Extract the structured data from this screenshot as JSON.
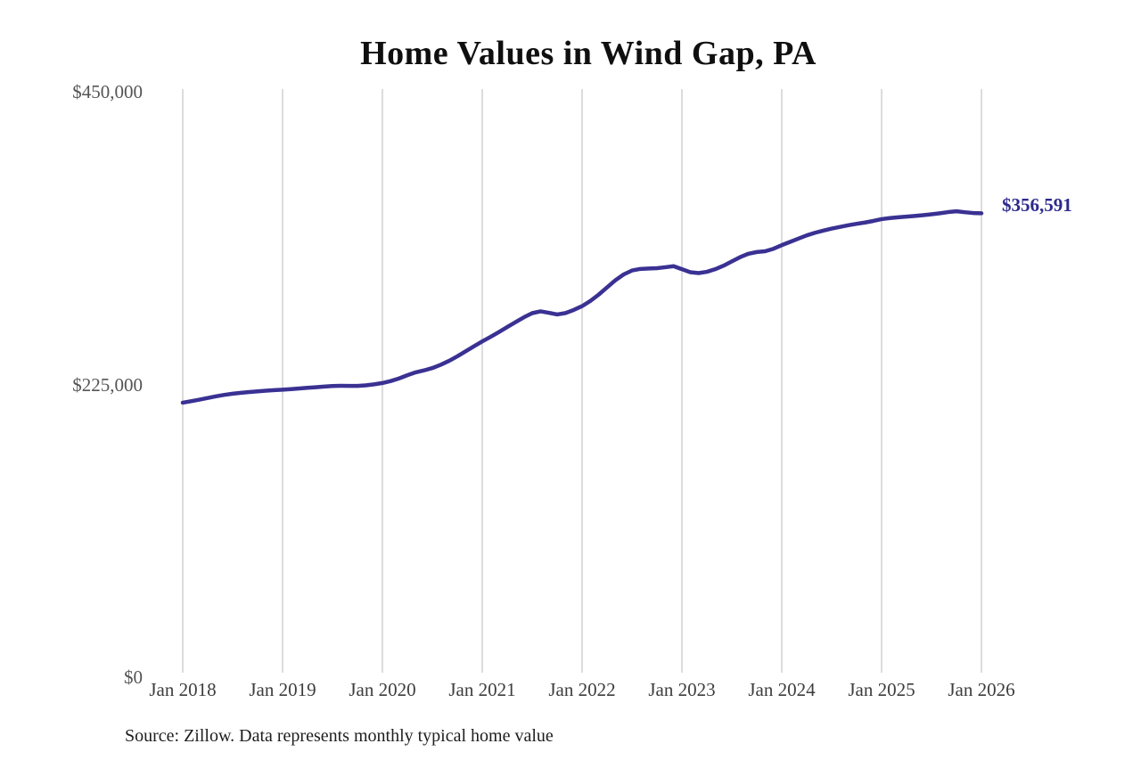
{
  "title": "Home Values in Wind Gap, PA",
  "source_note": "Source: Zillow. Data represents monthly typical home value",
  "end_label": "$356,591",
  "colors": {
    "line": "#3a3193",
    "end_label": "#2d2a8c",
    "grid": "#c9c9c9",
    "y_axis_text": "#555555",
    "x_axis_text": "#3d3d3d",
    "title_text": "#0f0f0f",
    "source_text": "#1e1e1e",
    "background": "#ffffff"
  },
  "chart_data": {
    "type": "line",
    "title": "Home Values in Wind Gap, PA",
    "xlabel": "",
    "ylabel": "",
    "ylim": [
      0,
      450000
    ],
    "y_tick_labels": [
      "$450,000",
      "$225,000",
      "$0"
    ],
    "y_tick_values": [
      450000,
      225000,
      0
    ],
    "x_tick_labels": [
      "Jan 2018",
      "Jan 2019",
      "Jan 2020",
      "Jan 2021",
      "Jan 2022",
      "Jan 2023",
      "Jan 2024",
      "Jan 2025",
      "Jan 2026"
    ],
    "grid": "vertical-only",
    "legend": "none",
    "final_value": 356591,
    "series": [
      {
        "name": "Monthly typical home value",
        "start_month": "Jan 2018",
        "end_month": "Jan 2026",
        "interval": "monthly",
        "values": [
          211000,
          212100,
          213300,
          214600,
          215900,
          217000,
          217900,
          218600,
          219200,
          219700,
          220200,
          220600,
          221000,
          221400,
          221900,
          222400,
          222900,
          223400,
          223800,
          224000,
          223900,
          223900,
          224300,
          225100,
          226100,
          227600,
          229600,
          232100,
          234300,
          235800,
          237600,
          240100,
          243100,
          246600,
          250500,
          254300,
          258100,
          261600,
          265300,
          269100,
          272900,
          276600,
          279800,
          281200,
          280100,
          278800,
          279900,
          282300,
          285200,
          289200,
          294100,
          299600,
          305100,
          309600,
          312600,
          313800,
          314100,
          314400,
          315100,
          315900,
          313600,
          311300,
          310600,
          311600,
          313600,
          316300,
          319600,
          322900,
          325500,
          326800,
          327400,
          329300,
          332100,
          334600,
          337100,
          339600,
          341600,
          343300,
          344800,
          346100,
          347400,
          348500,
          349500,
          350700,
          352100,
          352900,
          353500,
          354000,
          354500,
          355100,
          355800,
          356600,
          357500,
          358100,
          357400,
          356800,
          356591
        ]
      }
    ]
  }
}
